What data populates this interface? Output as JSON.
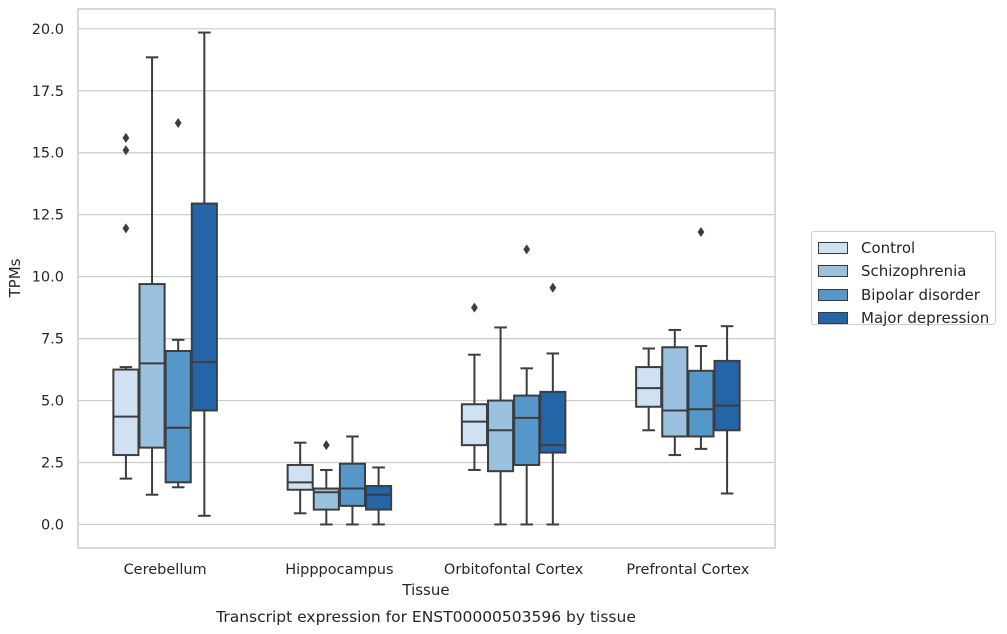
{
  "chart_data": {
    "type": "box",
    "title": "",
    "caption": "Transcript expression for ENST00000503596 by tissue",
    "xlabel": "Tissue",
    "ylabel": "TPMs",
    "ylim": [
      -0.95,
      20.8
    ],
    "yticks": [
      "0.0",
      "2.5",
      "5.0",
      "7.5",
      "10.0",
      "12.5",
      "15.0",
      "17.5",
      "20.0"
    ],
    "grid": "horizontal",
    "legend_placement": "center-right outside",
    "categories": [
      "Cerebellum",
      "Hipppocampus",
      "Orbitofontal Cortex",
      "Prefrontal Cortex"
    ],
    "series": [
      {
        "name": "Control",
        "color": "#d0e1f2",
        "boxes": [
          {
            "whislo": 1.85,
            "q1": 2.8,
            "med": 4.35,
            "q3": 6.25,
            "whishi": 6.35,
            "fliers": [
              15.6,
              15.1,
              11.95
            ]
          },
          {
            "whislo": 0.45,
            "q1": 1.4,
            "med": 1.7,
            "q3": 2.4,
            "whishi": 3.3,
            "fliers": []
          },
          {
            "whislo": 2.2,
            "q1": 3.2,
            "med": 4.15,
            "q3": 4.85,
            "whishi": 6.85,
            "fliers": [
              8.75
            ]
          },
          {
            "whislo": 3.8,
            "q1": 4.75,
            "med": 5.5,
            "q3": 6.35,
            "whishi": 7.1,
            "fliers": []
          }
        ]
      },
      {
        "name": "Schizophrenia",
        "color": "#9ac2de",
        "boxes": [
          {
            "whislo": 1.2,
            "q1": 3.1,
            "med": 6.5,
            "q3": 9.7,
            "whishi": 18.85,
            "fliers": []
          },
          {
            "whislo": 0.0,
            "q1": 0.6,
            "med": 1.3,
            "q3": 1.45,
            "whishi": 2.2,
            "fliers": [
              3.2
            ]
          },
          {
            "whislo": 0.0,
            "q1": 2.15,
            "med": 3.8,
            "q3": 5.0,
            "whishi": 7.95,
            "fliers": []
          },
          {
            "whislo": 2.8,
            "q1": 3.55,
            "med": 4.6,
            "q3": 7.15,
            "whishi": 7.85,
            "fliers": []
          }
        ]
      },
      {
        "name": "Bipolar disorder",
        "color": "#5597c9",
        "boxes": [
          {
            "whislo": 1.5,
            "q1": 1.7,
            "med": 3.9,
            "q3": 7.0,
            "whishi": 7.45,
            "fliers": [
              16.2
            ]
          },
          {
            "whislo": 0.0,
            "q1": 0.75,
            "med": 1.45,
            "q3": 2.45,
            "whishi": 3.55,
            "fliers": []
          },
          {
            "whislo": 0.0,
            "q1": 2.4,
            "med": 4.3,
            "q3": 5.2,
            "whishi": 6.3,
            "fliers": [
              11.1
            ]
          },
          {
            "whislo": 3.05,
            "q1": 3.55,
            "med": 4.65,
            "q3": 6.2,
            "whishi": 7.2,
            "fliers": [
              11.8
            ]
          }
        ]
      },
      {
        "name": "Major depression",
        "color": "#2465a7",
        "boxes": [
          {
            "whislo": 0.35,
            "q1": 4.6,
            "med": 6.55,
            "q3": 12.95,
            "whishi": 19.85,
            "fliers": []
          },
          {
            "whislo": 0.0,
            "q1": 0.6,
            "med": 1.2,
            "q3": 1.55,
            "whishi": 2.3,
            "fliers": []
          },
          {
            "whislo": 0.0,
            "q1": 2.9,
            "med": 3.2,
            "q3": 5.35,
            "whishi": 6.9,
            "fliers": [
              9.55
            ]
          },
          {
            "whislo": 1.25,
            "q1": 3.8,
            "med": 4.8,
            "q3": 6.6,
            "whishi": 8.0,
            "fliers": []
          }
        ]
      }
    ]
  }
}
